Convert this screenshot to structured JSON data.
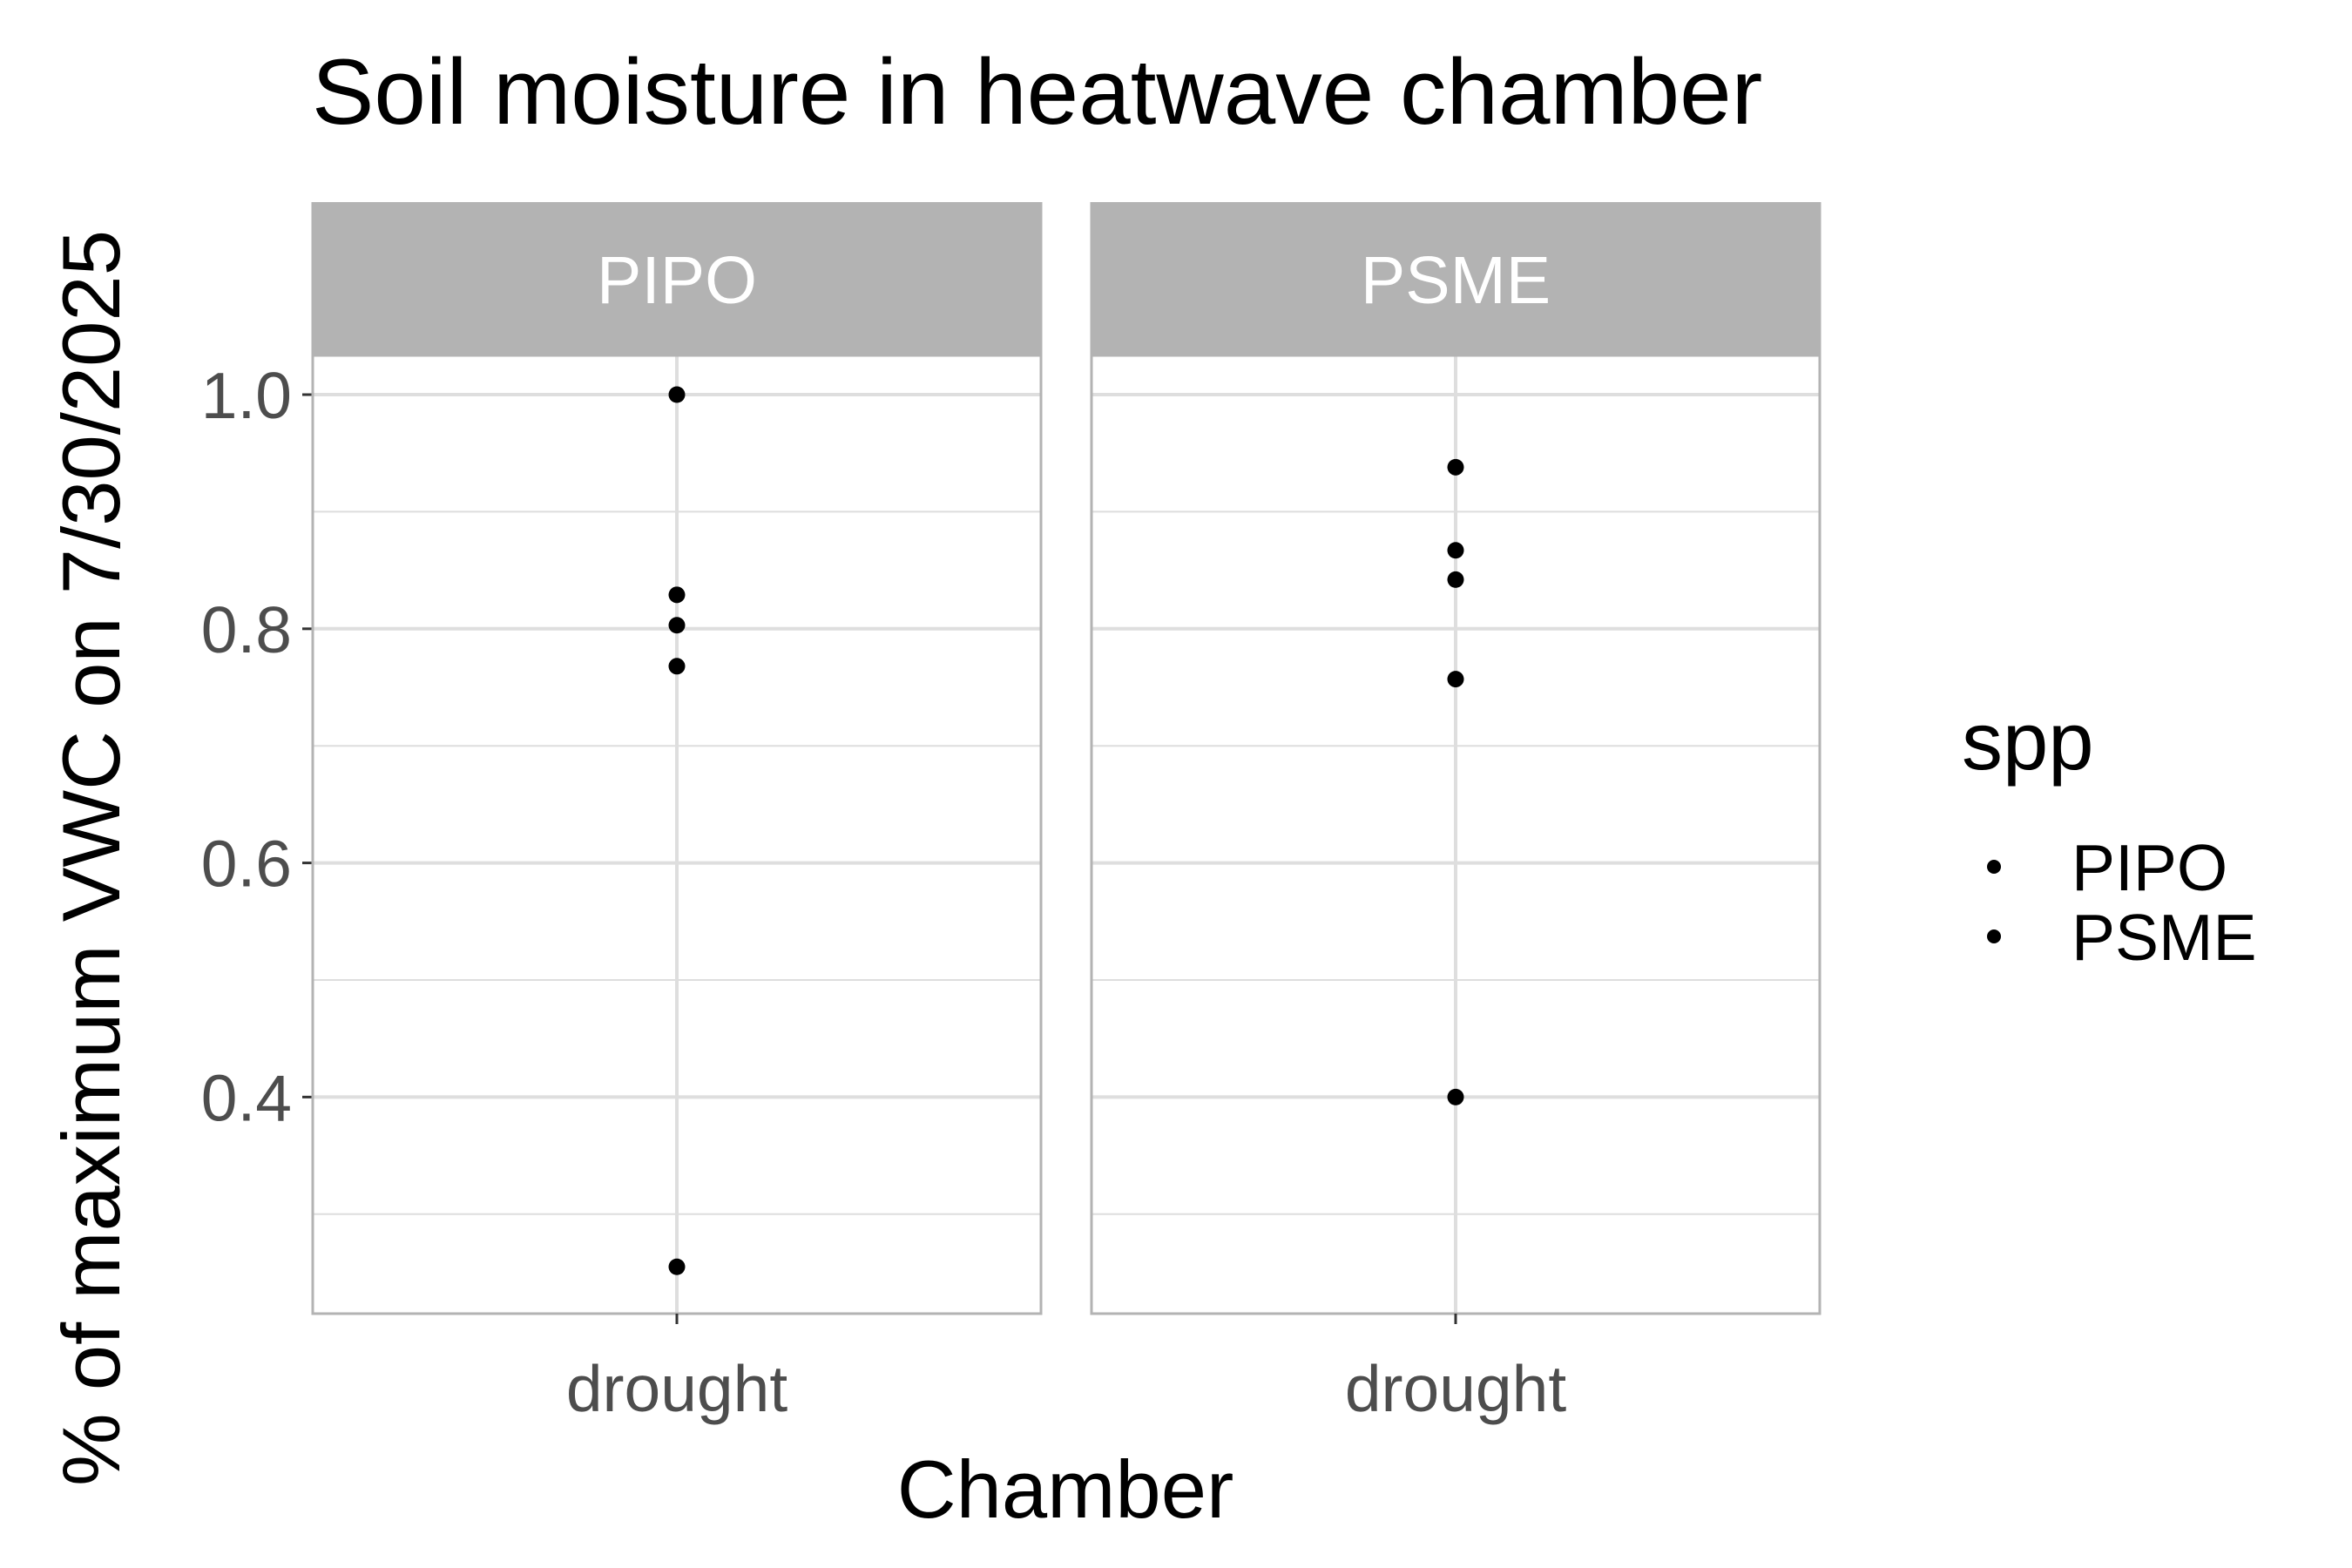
{
  "chart_data": {
    "type": "scatter",
    "title": "Soil moisture in heatwave chamber",
    "xlabel": "Chamber",
    "ylabel": "% of maximum VWC on 7/30/2025",
    "categories": [
      "drought"
    ],
    "ylim": [
      0.215,
      1.0335
    ],
    "yticks": [
      0.4,
      0.6,
      0.8,
      1.0
    ],
    "ytick_labels": [
      "0.4",
      "0.6",
      "0.8",
      "1.0"
    ],
    "grid": true,
    "facets": [
      {
        "label": "PIPO",
        "series": [
          {
            "name": "PIPO",
            "x": [
              "drought",
              "drought",
              "drought",
              "drought",
              "drought"
            ],
            "y": [
              1.0,
              0.829,
              0.803,
              0.768,
              0.255
            ]
          }
        ]
      },
      {
        "label": "PSME",
        "series": [
          {
            "name": "PSME",
            "x": [
              "drought",
              "drought",
              "drought",
              "drought",
              "drought"
            ],
            "y": [
              0.938,
              0.867,
              0.842,
              0.757,
              0.4
            ]
          }
        ]
      }
    ],
    "legend": {
      "title": "spp",
      "placement": "right",
      "entries": [
        "PIPO",
        "PSME"
      ]
    },
    "colors": {
      "point": "#000000",
      "strip_background": "#b3b3b3",
      "grid": "#dedede",
      "panel_border": "#b3b3b3"
    }
  }
}
